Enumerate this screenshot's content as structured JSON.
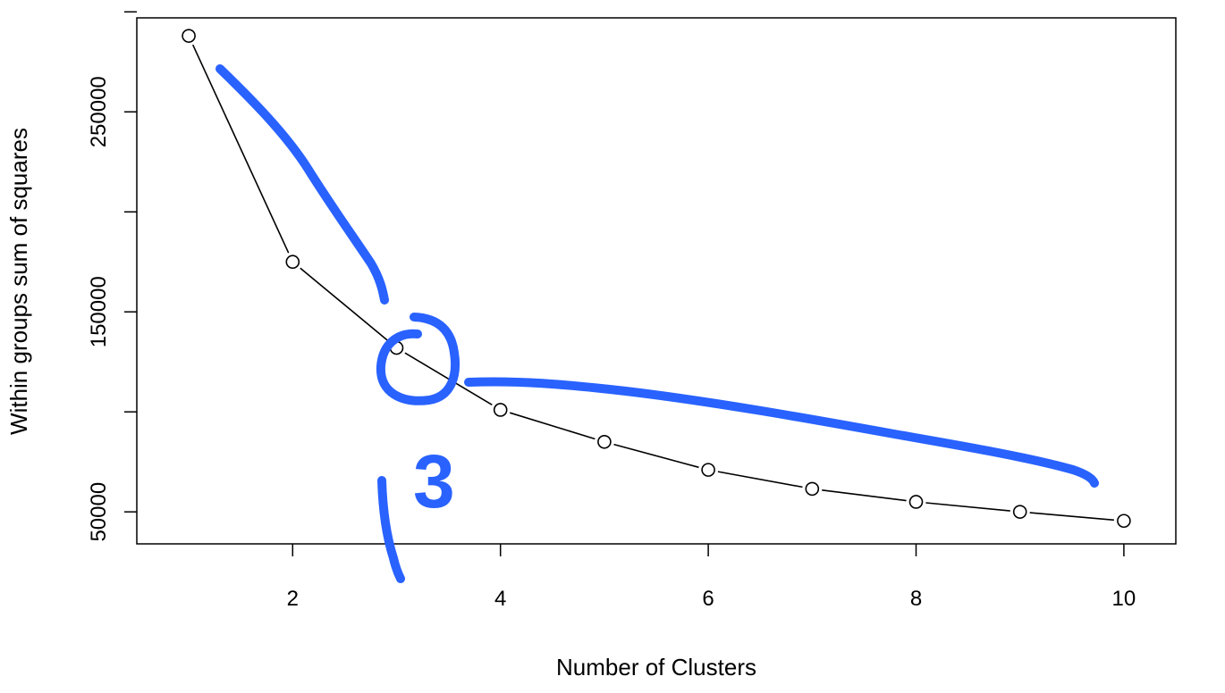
{
  "chart_data": {
    "type": "line",
    "title": "",
    "xlabel": "Number of Clusters",
    "ylabel": "Within groups sum of squares",
    "x": [
      1,
      2,
      3,
      4,
      5,
      6,
      7,
      8,
      9,
      10
    ],
    "series": [
      {
        "values": [
          288000,
          175000,
          132000,
          101000,
          85000,
          71000,
          61500,
          55000,
          50000,
          45500
        ],
        "marker": "open-circle",
        "color": "#000000"
      }
    ],
    "xlim": [
      0.5,
      10.5
    ],
    "ylim": [
      34000,
      297000
    ],
    "xticks": [
      2,
      4,
      6,
      8,
      10
    ],
    "xtick_labels": [
      "2",
      "4",
      "6",
      "8",
      "10"
    ],
    "yticks": [
      50000,
      100000,
      150000,
      200000,
      250000,
      300000
    ],
    "ytick_labels": [
      "50000",
      "",
      "150000",
      "",
      "250000",
      ""
    ],
    "grid": false,
    "annotation": {
      "label": "3",
      "color": "#2962ff",
      "note_target_x": 3
    }
  }
}
